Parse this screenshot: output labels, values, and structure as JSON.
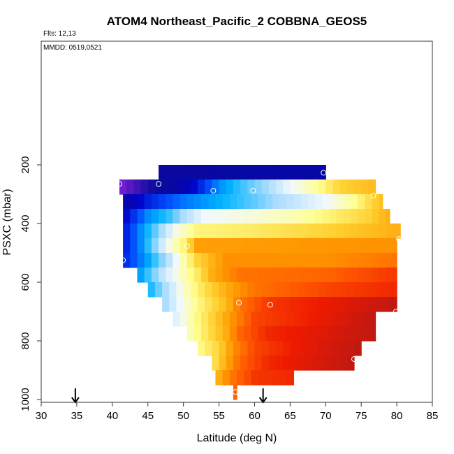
{
  "chart_data": {
    "type": "heatmap",
    "title": "ATOM4 Northeast_Pacific_2 COBBNA_GEOS5",
    "annotations": [
      "Flts: 12,13",
      "MMDD: 0519,0521"
    ],
    "xlabel": "Latitude (deg N)",
    "ylabel": "PSXC (mbar)",
    "xlim": [
      30,
      85
    ],
    "ylim": [
      1000,
      0
    ],
    "y_reversed": true,
    "x_ticks": [
      30,
      35,
      40,
      45,
      50,
      55,
      60,
      65,
      70,
      75,
      80,
      85
    ],
    "y_ticks": [
      200,
      400,
      600,
      800,
      1000
    ],
    "grid": false,
    "legend": "none",
    "value_colors": [
      "#7a1fd6",
      "#0a0a9a",
      "#0000c8",
      "#0050ff",
      "#00b4ff",
      "#aadcff",
      "#f2f8ff",
      "#ffff90",
      "#ffd030",
      "#ff9900",
      "#ff5a00",
      "#ee1a00",
      "#b01818"
    ],
    "rows": [
      {
        "p_top": 200,
        "p_bot": 250,
        "x0": 46.5,
        "x1": 70,
        "stops": [
          [
            46.5,
            0.09
          ],
          [
            70,
            0.11
          ]
        ]
      },
      {
        "p_top": 250,
        "p_bot": 300,
        "x0": 41,
        "x1": 77,
        "stops": [
          [
            41,
            0.0
          ],
          [
            45,
            0.07
          ],
          [
            50,
            0.12
          ],
          [
            55,
            0.3
          ],
          [
            58,
            0.36
          ],
          [
            62,
            0.42
          ],
          [
            65,
            0.5
          ],
          [
            69,
            0.58
          ],
          [
            72,
            0.66
          ],
          [
            77,
            0.7
          ]
        ]
      },
      {
        "p_top": 300,
        "p_bot": 350,
        "x0": 41.5,
        "x1": 78,
        "stops": [
          [
            41.5,
            0.1
          ],
          [
            45,
            0.2
          ],
          [
            50,
            0.28
          ],
          [
            55,
            0.33
          ],
          [
            60,
            0.38
          ],
          [
            65,
            0.44
          ],
          [
            70,
            0.5
          ],
          [
            74,
            0.58
          ],
          [
            78,
            0.7
          ]
        ]
      },
      {
        "p_top": 350,
        "p_bot": 400,
        "x0": 41.5,
        "x1": 79,
        "stops": [
          [
            41.5,
            0.16
          ],
          [
            45,
            0.3
          ],
          [
            48,
            0.36
          ],
          [
            50,
            0.42
          ],
          [
            53,
            0.5
          ],
          [
            60,
            0.53
          ],
          [
            66,
            0.56
          ],
          [
            72,
            0.62
          ],
          [
            76,
            0.66
          ],
          [
            79,
            0.72
          ]
        ]
      },
      {
        "p_top": 400,
        "p_bot": 450,
        "x0": 41.5,
        "x1": 80.5,
        "stops": [
          [
            41.5,
            0.18
          ],
          [
            44,
            0.3
          ],
          [
            47,
            0.42
          ],
          [
            49,
            0.52
          ],
          [
            52,
            0.6
          ],
          [
            60,
            0.62
          ],
          [
            70,
            0.66
          ],
          [
            80.5,
            0.72
          ]
        ]
      },
      {
        "p_top": 450,
        "p_bot": 500,
        "x0": 41.5,
        "x1": 80,
        "stops": [
          [
            41.5,
            0.18
          ],
          [
            44,
            0.3
          ],
          [
            46,
            0.4
          ],
          [
            48,
            0.52
          ],
          [
            50,
            0.6
          ],
          [
            52,
            0.74
          ],
          [
            80,
            0.76
          ]
        ]
      },
      {
        "p_top": 500,
        "p_bot": 550,
        "x0": 41.5,
        "x1": 80,
        "stops": [
          [
            41.5,
            0.2
          ],
          [
            45,
            0.32
          ],
          [
            48,
            0.44
          ],
          [
            50,
            0.56
          ],
          [
            52,
            0.66
          ],
          [
            56,
            0.76
          ],
          [
            70,
            0.76
          ],
          [
            80,
            0.8
          ]
        ]
      },
      {
        "p_top": 550,
        "p_bot": 600,
        "x0": 43.5,
        "x1": 80,
        "stops": [
          [
            43.5,
            0.3
          ],
          [
            46,
            0.4
          ],
          [
            49,
            0.52
          ],
          [
            52,
            0.62
          ],
          [
            54,
            0.72
          ],
          [
            58,
            0.8
          ],
          [
            70,
            0.82
          ],
          [
            80,
            0.88
          ]
        ]
      },
      {
        "p_top": 600,
        "p_bot": 650,
        "x0": 45,
        "x1": 80,
        "stops": [
          [
            45,
            0.33
          ],
          [
            48,
            0.44
          ],
          [
            50,
            0.54
          ],
          [
            53,
            0.64
          ],
          [
            56,
            0.72
          ],
          [
            60,
            0.8
          ],
          [
            70,
            0.86
          ],
          [
            80,
            0.9
          ]
        ]
      },
      {
        "p_top": 650,
        "p_bot": 700,
        "x0": 47,
        "x1": 80,
        "stops": [
          [
            47,
            0.4
          ],
          [
            50,
            0.52
          ],
          [
            53,
            0.62
          ],
          [
            56,
            0.7
          ],
          [
            58,
            0.8
          ],
          [
            62,
            0.88
          ],
          [
            70,
            0.92
          ],
          [
            80,
            0.98
          ]
        ]
      },
      {
        "p_top": 700,
        "p_bot": 750,
        "x0": 48.5,
        "x1": 77,
        "stops": [
          [
            48.5,
            0.46
          ],
          [
            51,
            0.56
          ],
          [
            54,
            0.66
          ],
          [
            57,
            0.76
          ],
          [
            60,
            0.86
          ],
          [
            66,
            0.9
          ],
          [
            72,
            0.94
          ],
          [
            77,
            0.98
          ]
        ]
      },
      {
        "p_top": 750,
        "p_bot": 800,
        "x0": 50.5,
        "x1": 77,
        "stops": [
          [
            50.5,
            0.54
          ],
          [
            53,
            0.62
          ],
          [
            56,
            0.72
          ],
          [
            58,
            0.82
          ],
          [
            62,
            0.9
          ],
          [
            70,
            0.94
          ],
          [
            77,
            0.98
          ]
        ]
      },
      {
        "p_top": 800,
        "p_bot": 850,
        "x0": 52,
        "x1": 75,
        "stops": [
          [
            52,
            0.58
          ],
          [
            55,
            0.66
          ],
          [
            57,
            0.76
          ],
          [
            60,
            0.86
          ],
          [
            66,
            0.92
          ],
          [
            75,
            0.98
          ]
        ]
      },
      {
        "p_top": 850,
        "p_bot": 900,
        "x0": 54,
        "x1": 74,
        "stops": [
          [
            54,
            0.62
          ],
          [
            56,
            0.72
          ],
          [
            58,
            0.82
          ],
          [
            62,
            0.9
          ],
          [
            68,
            0.94
          ],
          [
            74,
            0.98
          ]
        ]
      },
      {
        "p_top": 900,
        "p_bot": 950,
        "x0": 54.5,
        "x1": 65.5,
        "stops": [
          [
            54.5,
            0.7
          ],
          [
            57,
            0.8
          ],
          [
            60,
            0.88
          ],
          [
            65.5,
            0.9
          ]
        ]
      },
      {
        "p_top": 950,
        "p_bot": 1000,
        "x0": 57,
        "x1": 57.5,
        "stops": [
          [
            57,
            0.82
          ],
          [
            57.5,
            0.82
          ]
        ]
      }
    ],
    "sample_points": [
      {
        "x": 69.7,
        "y": 227
      },
      {
        "x": 41,
        "y": 265
      },
      {
        "x": 46.5,
        "y": 265
      },
      {
        "x": 54.2,
        "y": 288
      },
      {
        "x": 59.8,
        "y": 288
      },
      {
        "x": 76.7,
        "y": 305
      },
      {
        "x": 80.3,
        "y": 453
      },
      {
        "x": 50.5,
        "y": 477
      },
      {
        "x": 41.5,
        "y": 525
      },
      {
        "x": 57.8,
        "y": 670
      },
      {
        "x": 62.2,
        "y": 677
      },
      {
        "x": 79.9,
        "y": 700
      },
      {
        "x": 74,
        "y": 862
      },
      {
        "x": 57.3,
        "y": 974
      }
    ],
    "arrows_latitude": [
      34.8,
      61.2
    ]
  }
}
